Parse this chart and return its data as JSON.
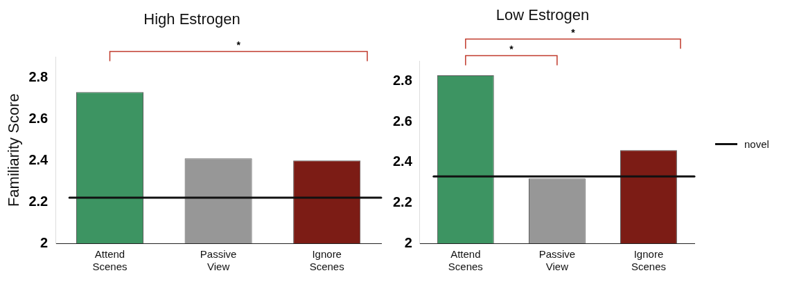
{
  "chart_data": [
    {
      "type": "bar",
      "title": "High Estrogen",
      "ylabel": "Familiarity Score",
      "categories": [
        "Attend Scenes",
        "Passive View",
        "Ignore Scenes"
      ],
      "values": [
        2.73,
        2.41,
        2.4
      ],
      "colors": [
        "#3d9462",
        "#979797",
        "#7c1c15"
      ],
      "ylim": [
        2,
        2.9
      ],
      "yticks": [
        2,
        2.2,
        2.4,
        2.6,
        2.8
      ],
      "grid": false,
      "legend": false,
      "ref_lines": [
        {
          "axis": "y",
          "value": 2.22,
          "color": "#111111"
        }
      ],
      "annotations": [
        "*"
      ]
    },
    {
      "type": "bar",
      "title": "Low Estrogen",
      "categories": [
        "Attend Scenes",
        "Passive View",
        "Ignore Scenes"
      ],
      "values": [
        2.83,
        2.32,
        2.46
      ],
      "colors": [
        "#3d9462",
        "#979797",
        "#7c1c15"
      ],
      "ylim": [
        2,
        2.9
      ],
      "yticks": [
        2,
        2.2,
        2.4,
        2.6,
        2.8
      ],
      "grid": false,
      "legend": "right",
      "ref_lines": [
        {
          "axis": "y",
          "value": 2.33,
          "label": "novel",
          "color": "#111111"
        }
      ],
      "annotations": [
        "*",
        "*"
      ]
    }
  ]
}
